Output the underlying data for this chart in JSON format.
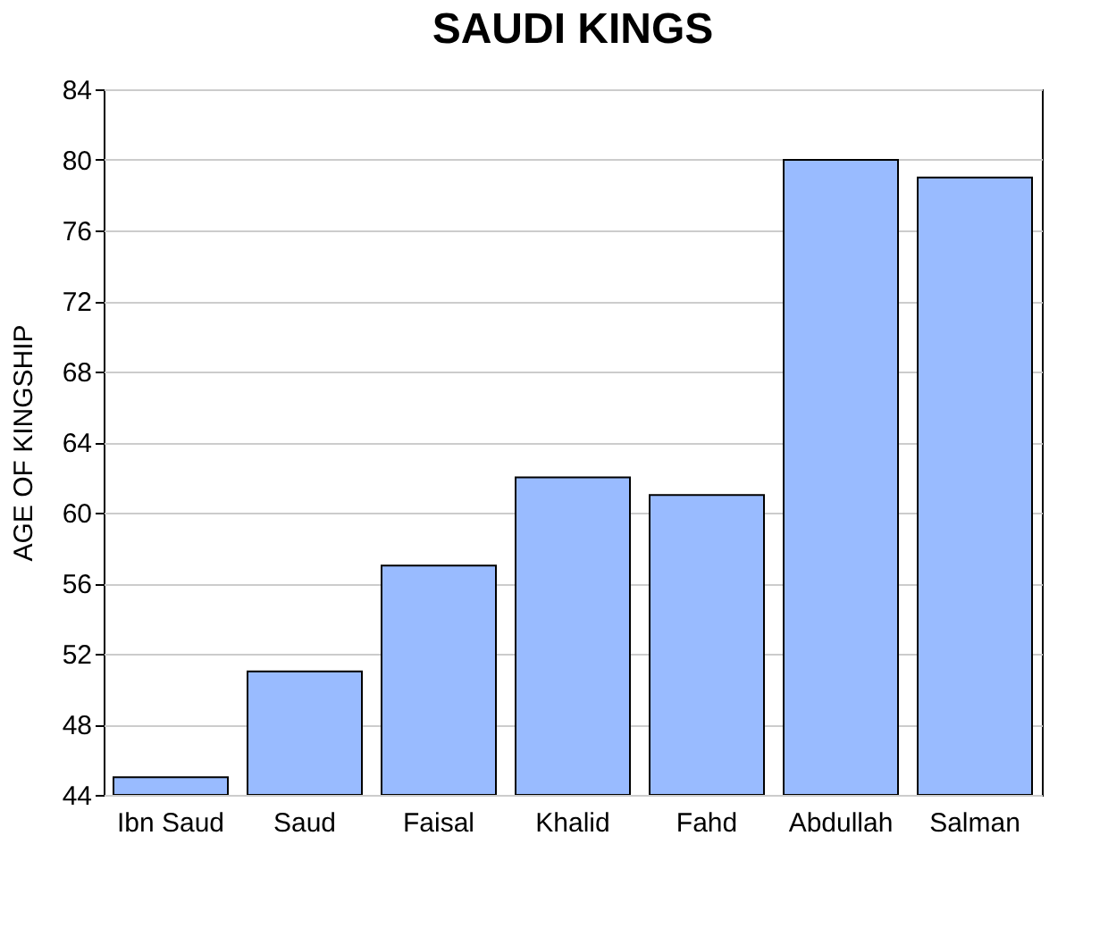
{
  "chart_data": {
    "type": "bar",
    "title": "SAUDI KINGS",
    "ylabel": "AGE OF KINGSHIP",
    "categories": [
      "Ibn Saud",
      "Saud",
      "Faisal",
      "Khalid",
      "Fahd",
      "Abdullah",
      "Salman"
    ],
    "values": [
      45,
      51,
      57,
      62,
      61,
      80,
      79
    ],
    "color": "#99bbff",
    "ylim": [
      44,
      84
    ],
    "yticks": [
      44,
      48,
      52,
      56,
      60,
      64,
      68,
      72,
      76,
      80,
      84
    ],
    "grid": "y"
  }
}
